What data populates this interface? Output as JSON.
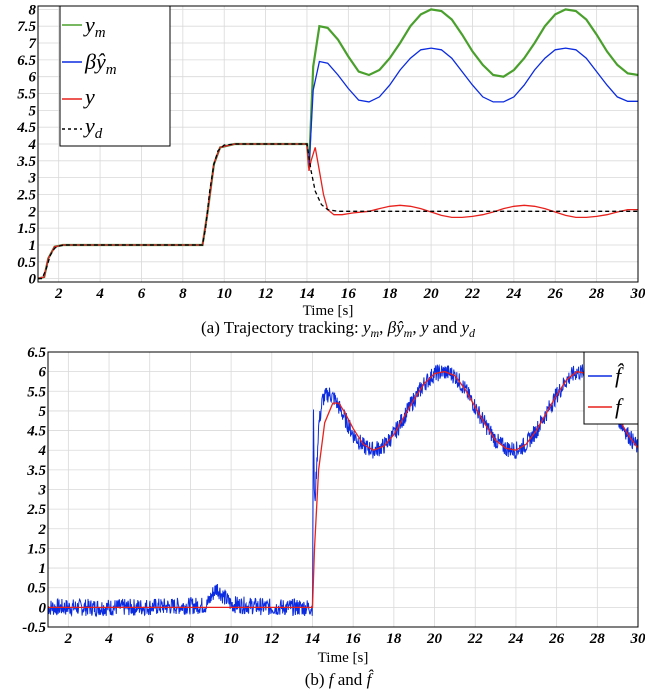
{
  "chart_data": [
    {
      "type": "line",
      "caption": "(a) Trajectory tracking: y_m, βŷ_m, y and y_d",
      "xlabel": "Time [s]",
      "ylabel": "",
      "xlim": [
        1,
        30
      ],
      "ylim": [
        -0.1,
        8.1
      ],
      "xticks": [
        2,
        4,
        6,
        8,
        10,
        12,
        14,
        16,
        18,
        20,
        22,
        24,
        26,
        28,
        30
      ],
      "yticks": [
        0,
        0.5,
        1,
        1.5,
        2,
        2.5,
        3,
        3.5,
        4,
        4.5,
        5,
        5.5,
        6,
        6.5,
        7,
        7.5,
        8
      ],
      "grid": true,
      "legend_position": "top-left",
      "series": [
        {
          "name": "y_m",
          "color": "#4aa02c",
          "x": [
            1.0,
            1.3,
            1.5,
            1.8,
            2.2,
            3,
            5,
            7,
            8.95,
            9.2,
            9.5,
            9.8,
            10.5,
            12,
            14.0,
            14.1,
            14.3,
            14.6,
            15,
            15.5,
            16,
            16.5,
            17,
            17.5,
            18,
            18.5,
            19,
            19.5,
            20,
            20.5,
            21,
            21.5,
            22,
            22.5,
            23,
            23.5,
            24,
            24.5,
            25,
            25.5,
            26,
            26.5,
            27,
            27.5,
            28,
            28.5,
            29,
            29.5,
            30
          ],
          "y": [
            0.0,
            0.05,
            0.6,
            0.95,
            1.0,
            1.0,
            1.0,
            1.0,
            1.0,
            2.0,
            3.4,
            3.9,
            4.0,
            4.0,
            4.0,
            3.3,
            6.3,
            7.5,
            7.45,
            7.1,
            6.6,
            6.15,
            6.05,
            6.2,
            6.55,
            7.0,
            7.5,
            7.85,
            8.0,
            7.95,
            7.7,
            7.25,
            6.75,
            6.35,
            6.05,
            6.0,
            6.2,
            6.55,
            7.0,
            7.5,
            7.85,
            8.0,
            7.95,
            7.7,
            7.25,
            6.75,
            6.35,
            6.1,
            6.05
          ]
        },
        {
          "name": "βŷ_m",
          "color": "#0b2be0",
          "x": [
            1.0,
            1.3,
            1.5,
            1.8,
            2.2,
            3,
            5,
            7,
            8.95,
            9.2,
            9.5,
            9.8,
            10.5,
            12,
            14.0,
            14.1,
            14.3,
            14.6,
            15,
            15.5,
            16,
            16.5,
            17,
            17.5,
            18,
            18.5,
            19,
            19.5,
            20,
            20.5,
            21,
            21.5,
            22,
            22.5,
            23,
            23.5,
            24,
            24.5,
            25,
            25.5,
            26,
            26.5,
            27,
            27.5,
            28,
            28.5,
            29,
            29.5,
            30
          ],
          "y": [
            0.0,
            0.05,
            0.6,
            0.95,
            1.0,
            1.0,
            1.0,
            1.0,
            1.0,
            2.0,
            3.4,
            3.9,
            4.0,
            4.0,
            4.0,
            3.3,
            5.6,
            6.45,
            6.4,
            6.05,
            5.65,
            5.3,
            5.25,
            5.4,
            5.75,
            6.2,
            6.55,
            6.8,
            6.85,
            6.8,
            6.55,
            6.15,
            5.75,
            5.4,
            5.25,
            5.25,
            5.4,
            5.75,
            6.2,
            6.55,
            6.8,
            6.85,
            6.8,
            6.55,
            6.15,
            5.75,
            5.4,
            5.27,
            5.27
          ]
        },
        {
          "name": "y",
          "color": "#e8211c",
          "x": [
            1.0,
            1.3,
            1.5,
            1.8,
            2.2,
            3,
            5,
            7,
            8.95,
            9.2,
            9.5,
            9.8,
            10.5,
            12,
            14.0,
            14.1,
            14.2,
            14.4,
            14.6,
            14.8,
            15.0,
            15.3,
            15.7,
            16.2,
            17,
            17.5,
            18,
            18.5,
            19,
            19.5,
            20,
            20.5,
            21,
            21.5,
            22,
            22.5,
            23,
            23.5,
            24,
            24.5,
            25,
            25.5,
            26,
            26.5,
            27,
            27.5,
            28,
            28.5,
            29,
            29.5,
            30
          ],
          "y": [
            0.0,
            0.05,
            0.6,
            0.95,
            1.0,
            1.0,
            1.0,
            1.0,
            1.0,
            2.0,
            3.4,
            3.9,
            4.0,
            4.0,
            4.0,
            3.2,
            3.5,
            3.9,
            3.2,
            2.5,
            2.05,
            1.9,
            1.9,
            1.95,
            2.0,
            2.08,
            2.15,
            2.18,
            2.15,
            2.08,
            1.98,
            1.88,
            1.82,
            1.82,
            1.85,
            1.9,
            1.98,
            2.08,
            2.15,
            2.18,
            2.15,
            2.08,
            1.98,
            1.88,
            1.82,
            1.82,
            1.85,
            1.9,
            1.98,
            2.05,
            2.05
          ]
        },
        {
          "name": "y_d",
          "color": "#000000",
          "dashed": true,
          "x": [
            1.0,
            1.2,
            1.4,
            1.6,
            1.8,
            2.0,
            2.3,
            3,
            8.95,
            9.1,
            9.3,
            9.5,
            9.7,
            10.0,
            10.5,
            14.0,
            14.2,
            14.4,
            14.7,
            15.0,
            15.5,
            30
          ],
          "y": [
            0.0,
            0.0,
            0.3,
            0.7,
            0.9,
            0.97,
            1.0,
            1.0,
            1.0,
            1.5,
            2.6,
            3.4,
            3.8,
            3.97,
            4.0,
            4.0,
            3.2,
            2.6,
            2.2,
            2.05,
            2.0,
            2.0
          ]
        }
      ]
    },
    {
      "type": "line",
      "caption": "(b) f and f̂",
      "xlabel": "Time [s]",
      "ylabel": "",
      "xlim": [
        1,
        30
      ],
      "ylim": [
        -0.5,
        6.5
      ],
      "xticks": [
        2,
        4,
        6,
        8,
        10,
        12,
        14,
        16,
        18,
        20,
        22,
        24,
        26,
        28,
        30
      ],
      "yticks": [
        -0.5,
        0,
        0.5,
        1,
        1.5,
        2,
        2.5,
        3,
        3.5,
        4,
        4.5,
        5,
        5.5,
        6,
        6.5
      ],
      "ytick_labels": [
        "-0.5",
        "0",
        "0.5",
        "1",
        "1.5",
        "2",
        "2.5",
        "3",
        "3.5",
        "4",
        "4.5",
        "5",
        "5.5",
        "6",
        "6.5"
      ],
      "grid": true,
      "legend_position": "top-right",
      "series": [
        {
          "name": "f̂",
          "color": "#0b2be0",
          "noise": 0.22,
          "x": [
            1.0,
            5,
            8.8,
            9.1,
            9.3,
            9.6,
            10,
            12,
            14.0,
            14.05,
            14.1,
            14.2,
            14.3,
            14.5,
            14.8,
            15.1,
            15.5,
            16,
            16.5,
            17,
            17.5,
            18,
            18.5,
            19,
            19.5,
            20,
            20.5,
            21,
            21.5,
            22,
            22.5,
            23,
            23.5,
            24,
            24.5,
            25,
            25.5,
            26,
            26.5,
            27,
            27.5,
            28,
            28.5,
            29,
            29.5,
            30
          ],
          "y": [
            0.0,
            0.0,
            0.05,
            0.35,
            0.5,
            0.3,
            0.08,
            0.0,
            0.0,
            5.1,
            2.5,
            3.5,
            4.6,
            5.3,
            5.45,
            5.3,
            4.9,
            4.4,
            4.1,
            4.0,
            4.1,
            4.4,
            4.85,
            5.3,
            5.7,
            5.95,
            6.0,
            5.9,
            5.55,
            5.1,
            4.65,
            4.25,
            4.05,
            4.0,
            4.15,
            4.5,
            4.95,
            5.4,
            5.8,
            6.0,
            5.95,
            5.7,
            5.3,
            4.85,
            4.4,
            4.05
          ]
        },
        {
          "name": "f",
          "color": "#e8211c",
          "x": [
            1.0,
            14.0,
            14.1,
            14.3,
            14.6,
            15.0,
            15.3,
            15.6,
            16,
            16.5,
            17,
            17.5,
            18,
            18.5,
            19,
            19.5,
            20,
            20.5,
            21,
            21.5,
            22,
            22.5,
            23,
            23.5,
            24,
            24.5,
            25,
            25.5,
            26,
            26.5,
            27,
            27.5,
            28,
            28.5,
            29,
            29.5,
            30
          ],
          "y": [
            0.0,
            0.0,
            1.5,
            3.5,
            4.7,
            5.2,
            5.2,
            4.95,
            4.55,
            4.15,
            4.0,
            4.1,
            4.4,
            4.85,
            5.3,
            5.7,
            5.95,
            6.0,
            5.9,
            5.55,
            5.1,
            4.65,
            4.25,
            4.05,
            4.0,
            4.15,
            4.5,
            4.95,
            5.4,
            5.8,
            6.0,
            5.95,
            5.7,
            5.3,
            4.85,
            4.4,
            4.05
          ]
        }
      ]
    }
  ]
}
